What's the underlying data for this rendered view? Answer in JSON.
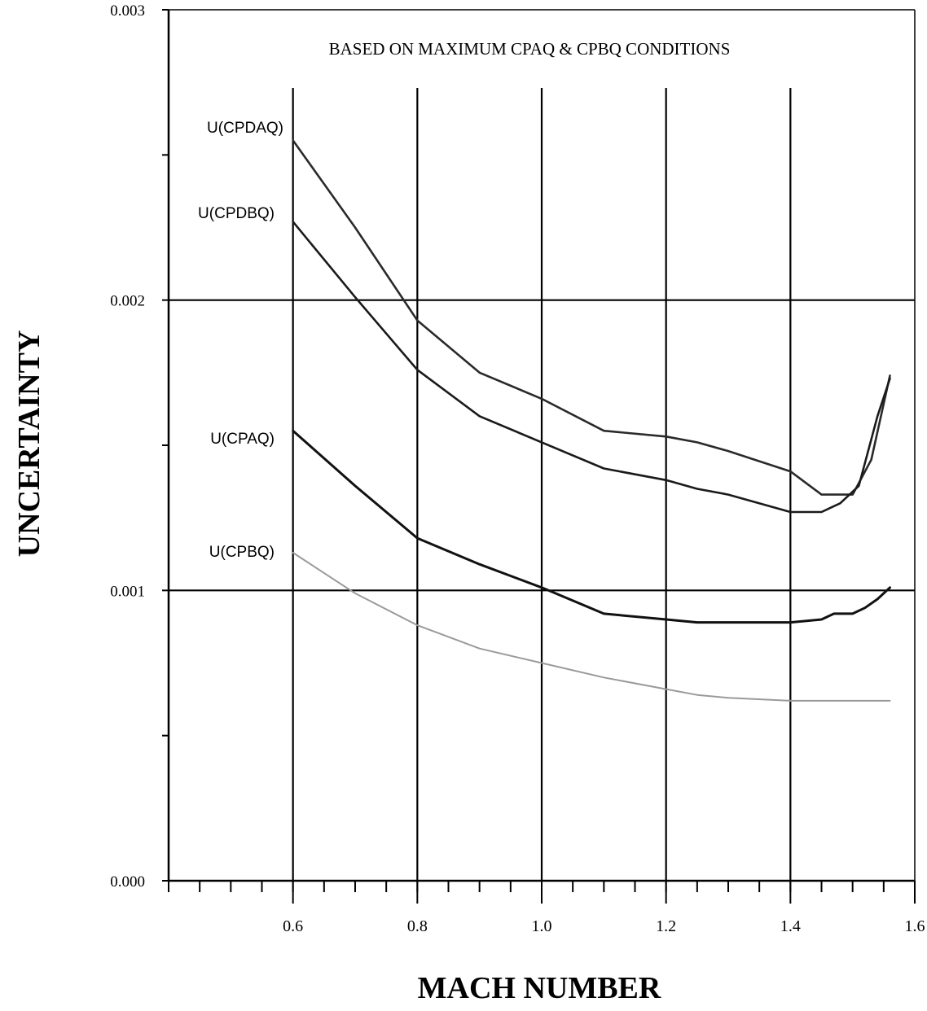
{
  "chart_data": {
    "type": "line",
    "title": "",
    "annotation": "BASED ON MAXIMUM CPAQ & CPBQ CONDITIONS",
    "xlabel": "MACH NUMBER",
    "ylabel": "UNCERTAINTY",
    "xlim": [
      0.4,
      1.6
    ],
    "ylim": [
      0.0,
      0.003
    ],
    "x_ticks": [
      0.6,
      0.8,
      1.0,
      1.2,
      1.4,
      1.6
    ],
    "x_tick_labels": [
      "0.6",
      "0.8",
      "1.0",
      "1.2",
      "1.4",
      "1.6"
    ],
    "x_minor_step": 0.05,
    "y_ticks": [
      0.0,
      0.001,
      0.002,
      0.003
    ],
    "y_tick_labels": [
      "0.000",
      "0.001",
      "0.002",
      "0.003"
    ],
    "y_minor_step": 0.0005,
    "x_gridlines": [
      0.6,
      0.8,
      1.0,
      1.2,
      1.4
    ],
    "y_gridlines": [
      0.001,
      0.002
    ],
    "grid": true,
    "legend": "labels at left of curves",
    "series": [
      {
        "name": "U(CPDAQ)",
        "color": "#2a2a2a",
        "x": [
          0.6,
          0.7,
          0.8,
          0.9,
          1.0,
          1.1,
          1.2,
          1.25,
          1.3,
          1.4,
          1.45,
          1.5,
          1.53,
          1.56
        ],
        "y": [
          0.00255,
          0.00225,
          0.00193,
          0.00175,
          0.00166,
          0.00155,
          0.00153,
          0.00151,
          0.00148,
          0.00141,
          0.00133,
          0.00133,
          0.00145,
          0.00174
        ]
      },
      {
        "name": "U(CPDBQ)",
        "color": "#1a1a1a",
        "x": [
          0.6,
          0.7,
          0.8,
          0.9,
          1.0,
          1.1,
          1.2,
          1.25,
          1.3,
          1.4,
          1.45,
          1.48,
          1.51,
          1.54,
          1.56
        ],
        "y": [
          0.00227,
          0.00201,
          0.00176,
          0.0016,
          0.00151,
          0.00142,
          0.00138,
          0.00135,
          0.00133,
          0.00127,
          0.00127,
          0.0013,
          0.00136,
          0.0016,
          0.00173
        ]
      },
      {
        "name": "U(CPAQ)",
        "color": "#111111",
        "x": [
          0.6,
          0.7,
          0.8,
          0.9,
          1.0,
          1.1,
          1.2,
          1.25,
          1.3,
          1.4,
          1.45,
          1.47,
          1.5,
          1.52,
          1.54,
          1.56
        ],
        "y": [
          0.00155,
          0.00136,
          0.00118,
          0.00109,
          0.00101,
          0.00092,
          0.0009,
          0.00089,
          0.00089,
          0.00089,
          0.0009,
          0.00092,
          0.00092,
          0.00094,
          0.00097,
          0.00101
        ]
      },
      {
        "name": "U(CPBQ)",
        "color": "#9a9a9a",
        "x": [
          0.6,
          0.7,
          0.8,
          0.9,
          1.0,
          1.1,
          1.2,
          1.25,
          1.3,
          1.4,
          1.5,
          1.56
        ],
        "y": [
          0.00113,
          0.00099,
          0.00088,
          0.0008,
          0.00075,
          0.0007,
          0.00066,
          0.00064,
          0.00063,
          0.00062,
          0.00062,
          0.00062
        ]
      }
    ]
  }
}
